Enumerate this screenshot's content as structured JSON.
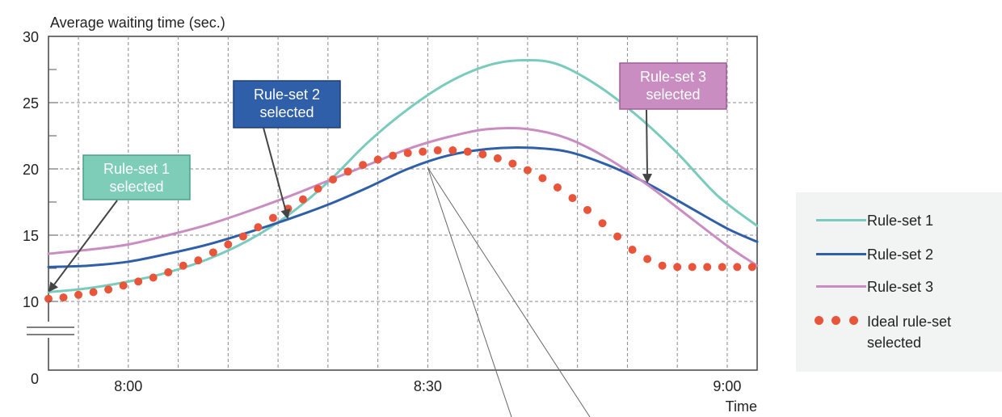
{
  "chart_data": {
    "type": "line",
    "ylabel": "Average waiting time (sec.)",
    "xlabel": "Time",
    "ylim": [
      0,
      30
    ],
    "yticks": [
      {
        "value": 0,
        "label": "0"
      },
      {
        "value": 10,
        "label": "10"
      },
      {
        "value": 15,
        "label": "15"
      },
      {
        "value": 20,
        "label": "20"
      },
      {
        "value": 25,
        "label": "25"
      },
      {
        "value": 30,
        "label": "30"
      }
    ],
    "xlim": [
      -8,
      63
    ],
    "xticks": [
      {
        "value": 0,
        "label": "8:00"
      },
      {
        "value": 30,
        "label": "8:30"
      },
      {
        "value": 60,
        "label": "9:00"
      }
    ],
    "grid": true,
    "axis_break": true,
    "series": [
      {
        "name": "Rule-set 1",
        "color": "#79cbbd",
        "style": "line",
        "x": [
          -8,
          -4,
          0,
          4,
          8,
          12,
          16,
          20,
          24,
          28,
          32,
          36,
          39.5,
          43,
          47,
          51,
          55,
          59,
          63
        ],
        "y": [
          10.7,
          11.0,
          11.5,
          12.2,
          13.2,
          14.6,
          16.5,
          19.0,
          22.0,
          24.5,
          26.5,
          27.8,
          28.2,
          27.9,
          26.3,
          24.0,
          21.2,
          18.0,
          15.7
        ]
      },
      {
        "name": "Rule-set 2",
        "color": "#2f5fa8",
        "style": "line",
        "x": [
          -8,
          -4,
          0,
          4,
          8,
          12,
          16,
          20,
          24,
          28,
          32,
          36,
          40,
          44,
          48,
          52,
          56,
          60,
          63
        ],
        "y": [
          12.6,
          12.7,
          13.0,
          13.6,
          14.3,
          15.2,
          16.2,
          17.3,
          18.6,
          20.0,
          21.0,
          21.5,
          21.6,
          21.3,
          20.3,
          18.9,
          17.2,
          15.5,
          14.5
        ]
      },
      {
        "name": "Rule-set 3",
        "color": "#c98dc2",
        "style": "line",
        "x": [
          -8,
          -4,
          0,
          4,
          8,
          12,
          16,
          20,
          24,
          28,
          32,
          36,
          40,
          44,
          48,
          52,
          56,
          60,
          63
        ],
        "y": [
          13.6,
          13.9,
          14.3,
          15.0,
          15.8,
          16.8,
          17.9,
          19.1,
          20.3,
          21.5,
          22.4,
          23.0,
          23.0,
          22.3,
          20.8,
          18.8,
          16.5,
          14.2,
          12.7
        ]
      },
      {
        "name": "Ideal rule-set selected",
        "color": "#e8553a",
        "style": "dots",
        "x": [
          -8,
          -6.5,
          -5,
          -3.5,
          -2,
          -0.5,
          1,
          2.5,
          4,
          5.5,
          7,
          8.5,
          10,
          11.5,
          13,
          14.5,
          16,
          17.5,
          19,
          20.5,
          22,
          23.5,
          25,
          26.5,
          28,
          29.5,
          31,
          32.5,
          34,
          35.5,
          37,
          38.5,
          40,
          41.5,
          43,
          44.5,
          46,
          47.5,
          49,
          50.5,
          52,
          53.5,
          55,
          56.5,
          58,
          59.5,
          61,
          62.5
        ],
        "y": [
          10.2,
          10.3,
          10.5,
          10.7,
          10.9,
          11.2,
          11.5,
          11.8,
          12.2,
          12.7,
          13.1,
          13.7,
          14.3,
          14.9,
          15.6,
          16.3,
          17.0,
          17.7,
          18.5,
          19.2,
          19.8,
          20.3,
          20.7,
          21.0,
          21.2,
          21.3,
          21.4,
          21.4,
          21.3,
          21.1,
          20.8,
          20.4,
          19.9,
          19.3,
          18.6,
          17.8,
          16.9,
          15.9,
          14.9,
          13.9,
          13.2,
          12.7,
          12.6,
          12.6,
          12.6,
          12.6,
          12.6,
          12.6
        ]
      }
    ],
    "annotations": [
      {
        "line1": "Rule-set 1",
        "line2": "selected",
        "bg": "#7dcdb9",
        "border": "#4aa08c",
        "target_x": -8,
        "target_y": 10.7
      },
      {
        "line1": "Rule-set 2",
        "line2": "selected",
        "bg": "#2f5fa8",
        "border": "#1e3f74",
        "target_x": 16,
        "target_y": 16.2
      },
      {
        "line1": "Rule-set 3",
        "line2": "selected",
        "bg": "#c98dc2",
        "border": "#9c5f97",
        "target_x": 52,
        "target_y": 18.9
      }
    ]
  },
  "legend": {
    "items": [
      {
        "label": "Rule-set 1",
        "color": "#79cbbd",
        "style": "line"
      },
      {
        "label": "Rule-set 2",
        "color": "#2f5fa8",
        "style": "line"
      },
      {
        "label": "Rule-set 3",
        "color": "#c98dc2",
        "style": "line"
      },
      {
        "label": "Ideal rule-set",
        "label2": "selected",
        "color": "#e8553a",
        "style": "dots"
      }
    ]
  }
}
